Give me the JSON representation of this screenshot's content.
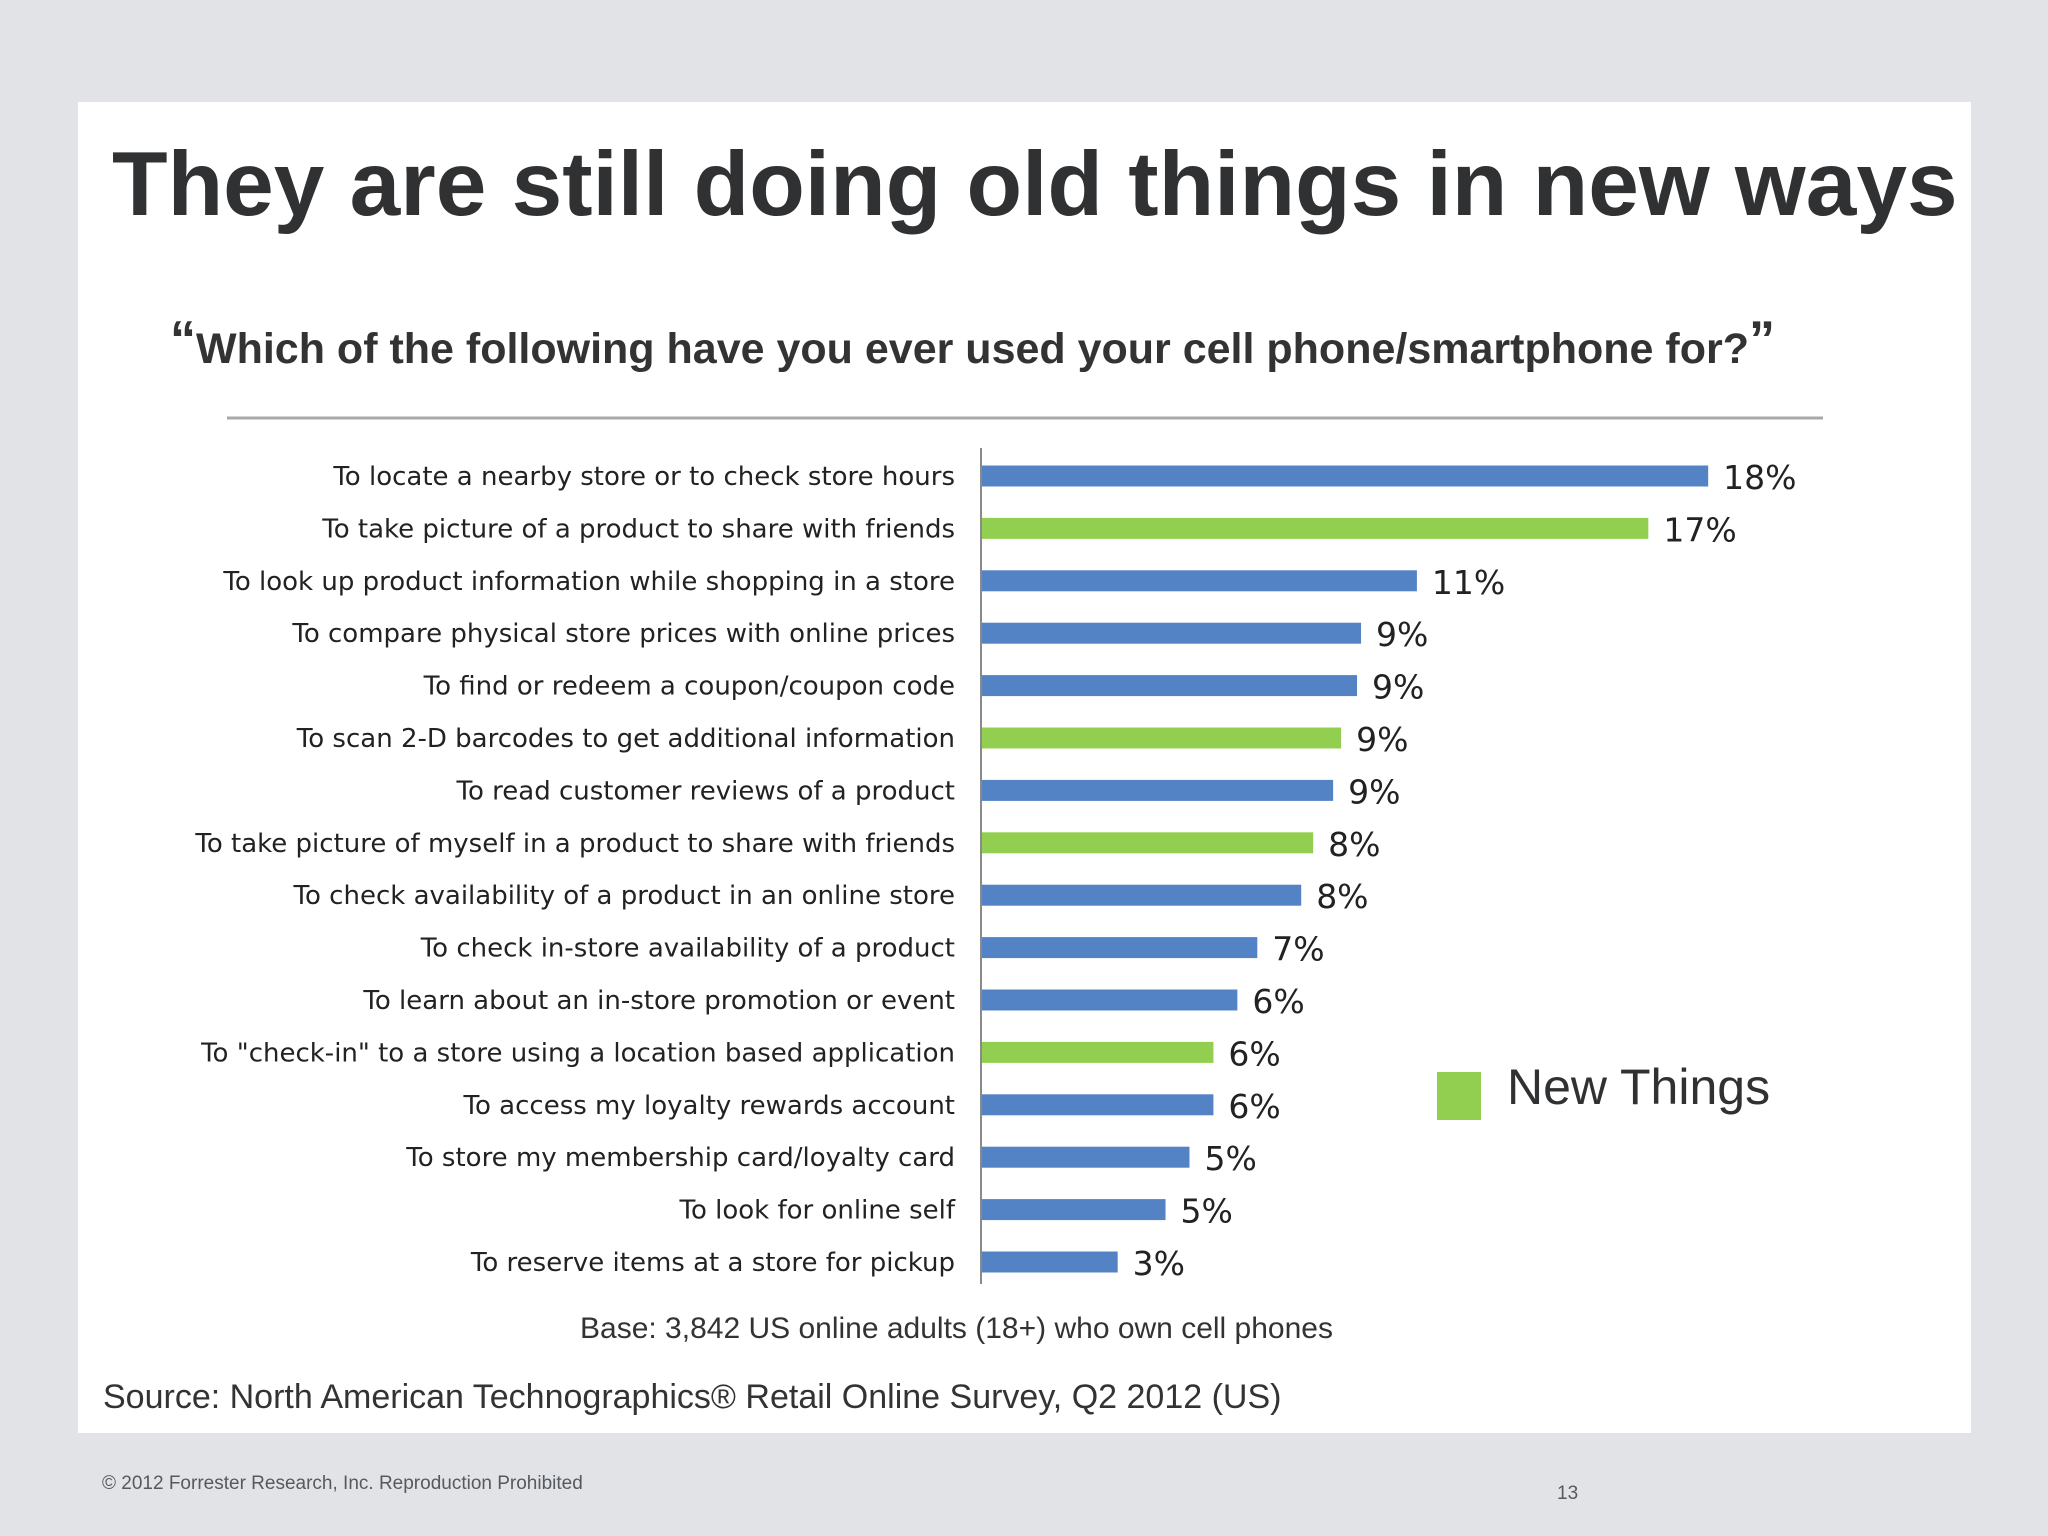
{
  "slide": {
    "title": "They are still doing old things in new ways",
    "question_open": "“",
    "question": "Which of the following have you ever used your cell phone/smartphone for?",
    "question_close": "”",
    "base_note": "Base: 3,842 US online adults (18+) who own cell phones",
    "source_note": "Source: North American Technographics® Retail Online Survey, Q2 2012 (US)",
    "copyright": "© 2012 Forrester Research, Inc. Reproduction Prohibited",
    "page_number": "13"
  },
  "colors": {
    "old_things": "#5383c4",
    "new_things": "#92cf50",
    "rule": "#a8a8a8",
    "axis": "#8a8a8a"
  },
  "legend": {
    "label": "New Things",
    "color": "#92cf50"
  },
  "chart_data": {
    "type": "bar",
    "orientation": "horizontal",
    "categories": [
      "To locate a nearby store or  to check store hours",
      "To take picture of a product to share with friends",
      "To look up product information while shopping in a store",
      "To compare physical store prices with online prices",
      "To find or redeem a coupon/coupon code",
      "To scan 2-D barcodes to get additional information",
      "To read customer reviews of a product",
      "To take picture of myself in a product to share with friends",
      "To check availability of a product in an online store",
      "To check in-store availability of a product",
      "To learn about an in-store promotion or event",
      "To \"check-in\" to a store using a location based application",
      "To access my loyalty rewards account",
      "To store my membership card/loyalty card",
      "To look for online self",
      "To reserve items at a store for pickup"
    ],
    "values": [
      18.2,
      16.7,
      10.9,
      9.5,
      9.4,
      9.0,
      8.8,
      8.3,
      8.0,
      6.9,
      6.4,
      5.8,
      5.8,
      5.2,
      4.6,
      3.4
    ],
    "labels": [
      "18%",
      "17%",
      "11%",
      "9%",
      "9%",
      "9%",
      "9%",
      "8%",
      "8%",
      "7%",
      "6%",
      "6%",
      "6%",
      "5%",
      "5%",
      "3%"
    ],
    "group": [
      "old",
      "new",
      "old",
      "old",
      "old",
      "new",
      "old",
      "new",
      "old",
      "old",
      "old",
      "new",
      "old",
      "old",
      "old",
      "old"
    ],
    "unit": "%",
    "legend_position": "right",
    "grid": false
  }
}
